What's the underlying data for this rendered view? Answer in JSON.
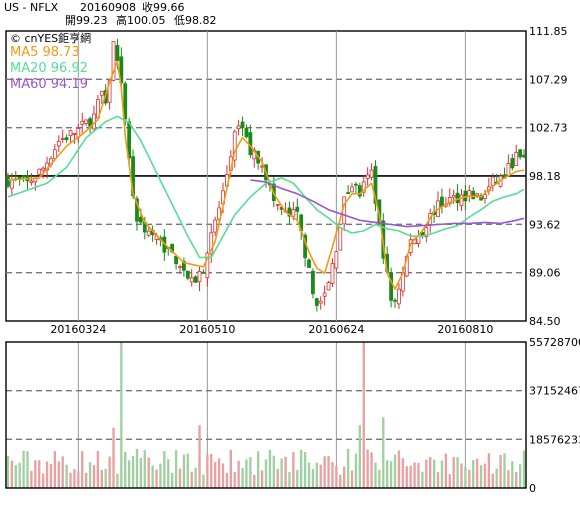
{
  "header": {
    "symbol": "US - NFLX",
    "date": "20160908",
    "close": "收99.66",
    "open": "開99.23",
    "high": "高100.05",
    "low": "低98.82"
  },
  "legend": {
    "source": "© cnYES鉅亨網",
    "ma5": "MA5 98.73",
    "ma20": "MA20 96.92",
    "ma60": "MA60 94.19"
  },
  "colors": {
    "up": "#d83030",
    "down": "#1a8a1a",
    "ma5": "#f29a16",
    "ma20": "#55dd99",
    "ma60": "#9955cc",
    "grid_dashed": "#777777",
    "reference_line": "#000000"
  },
  "chart_data": [
    {
      "type": "candlestick",
      "title": "US - NFLX",
      "price_axis": {
        "ticks": [
          "111.85",
          "107.29",
          "102.73",
          "98.18",
          "93.62",
          "89.06",
          "84.50"
        ],
        "ylim": [
          84.5,
          111.85
        ],
        "reference_line": 98.18,
        "position": "right"
      },
      "date_labels": [
        "20160324",
        "20160510",
        "20160624",
        "20160810"
      ],
      "date_label_index": [
        18,
        51,
        84,
        117
      ],
      "n_bars": 133,
      "ohlc_anchors": [
        [
          0,
          97.8
        ],
        [
          5,
          97.5
        ],
        [
          9,
          98.9
        ],
        [
          13,
          101.5
        ],
        [
          18,
          102.5
        ],
        [
          22,
          103.8
        ],
        [
          24,
          106.0
        ],
        [
          25,
          104.5
        ],
        [
          27,
          110.6
        ],
        [
          29,
          106.5
        ],
        [
          31,
          100.0
        ],
        [
          32,
          96.5
        ],
        [
          33,
          94.0
        ],
        [
          36,
          93.0
        ],
        [
          40,
          91.5
        ],
        [
          44,
          90.0
        ],
        [
          47,
          88.0
        ],
        [
          50,
          89.5
        ],
        [
          52,
          92.5
        ],
        [
          55,
          96.5
        ],
        [
          58,
          102.0
        ],
        [
          60,
          102.8
        ],
        [
          62,
          100.5
        ],
        [
          65,
          99.5
        ],
        [
          68,
          95.8
        ],
        [
          71,
          94.5
        ],
        [
          74,
          94.5
        ],
        [
          76,
          91.0
        ],
        [
          78,
          87.0
        ],
        [
          80,
          86.0
        ],
        [
          82,
          88.0
        ],
        [
          84,
          91.5
        ],
        [
          86,
          95.8
        ],
        [
          88,
          97.5
        ],
        [
          90,
          96.5
        ],
        [
          93,
          98.5
        ],
        [
          96,
          91.0
        ],
        [
          98,
          86.5
        ],
        [
          99,
          86.5
        ],
        [
          101,
          89.0
        ],
        [
          103,
          92.0
        ],
        [
          106,
          93.0
        ],
        [
          109,
          95.0
        ],
        [
          112,
          95.8
        ],
        [
          115,
          96.2
        ],
        [
          118,
          96.5
        ],
        [
          121,
          96.0
        ],
        [
          124,
          97.5
        ],
        [
          127,
          98.2
        ],
        [
          129,
          99.5
        ],
        [
          130,
          100.0
        ],
        [
          132,
          99.66
        ]
      ],
      "series": [
        {
          "name": "MA5 98.73",
          "points": [
            [
              0,
              97.8
            ],
            [
              8,
              98.0
            ],
            [
              15,
              101.0
            ],
            [
              20,
              102.4
            ],
            [
              23,
              103.5
            ],
            [
              26,
              107.0
            ],
            [
              28,
              109.0
            ],
            [
              29,
              106.5
            ],
            [
              30,
              102.0
            ],
            [
              32,
              96.5
            ],
            [
              35,
              93.8
            ],
            [
              40,
              91.8
            ],
            [
              45,
              90.0
            ],
            [
              50,
              89.6
            ],
            [
              53,
              92.0
            ],
            [
              56,
              97.0
            ],
            [
              58,
              100.5
            ],
            [
              60,
              101.8
            ],
            [
              62,
              101.0
            ],
            [
              65,
              99.5
            ],
            [
              68,
              96.5
            ],
            [
              71,
              94.8
            ],
            [
              74,
              94.0
            ],
            [
              77,
              91.0
            ],
            [
              79,
              89.5
            ],
            [
              81,
              89.0
            ],
            [
              83,
              91.5
            ],
            [
              86,
              95.5
            ],
            [
              88,
              96.5
            ],
            [
              90,
              96.5
            ],
            [
              93,
              97.5
            ],
            [
              95,
              94.5
            ],
            [
              97,
              89.0
            ],
            [
              99,
              87.5
            ],
            [
              101,
              89.0
            ],
            [
              103,
              91.8
            ],
            [
              106,
              93.0
            ],
            [
              109,
              94.8
            ],
            [
              112,
              95.5
            ],
            [
              115,
              96.0
            ],
            [
              118,
              96.3
            ],
            [
              121,
              96.2
            ],
            [
              124,
              97.2
            ],
            [
              127,
              98.0
            ],
            [
              130,
              98.6
            ],
            [
              132,
              98.73
            ]
          ]
        },
        {
          "name": "MA20 96.92",
          "points": [
            [
              0,
              96.2
            ],
            [
              10,
              97.5
            ],
            [
              15,
              99.0
            ],
            [
              20,
              101.8
            ],
            [
              25,
              103.3
            ],
            [
              28,
              103.8
            ],
            [
              31,
              103.2
            ],
            [
              34,
              101.5
            ],
            [
              38,
              98.5
            ],
            [
              42,
              95.5
            ],
            [
              46,
              92.5
            ],
            [
              49,
              90.5
            ],
            [
              52,
              90.5
            ],
            [
              55,
              92.5
            ],
            [
              58,
              94.5
            ],
            [
              62,
              96.2
            ],
            [
              66,
              97.5
            ],
            [
              70,
              98.0
            ],
            [
              73,
              97.5
            ],
            [
              76,
              96.2
            ],
            [
              79,
              95.0
            ],
            [
              82,
              94.2
            ],
            [
              85,
              93.3
            ],
            [
              88,
              92.8
            ],
            [
              91,
              93.0
            ],
            [
              94,
              93.6
            ],
            [
              97,
              93.2
            ],
            [
              100,
              93.0
            ],
            [
              103,
              92.5
            ],
            [
              106,
              92.5
            ],
            [
              109,
              92.8
            ],
            [
              112,
              93.2
            ],
            [
              115,
              93.5
            ],
            [
              118,
              94.3
            ],
            [
              121,
              95.0
            ],
            [
              124,
              95.8
            ],
            [
              127,
              96.2
            ],
            [
              130,
              96.5
            ],
            [
              132,
              96.92
            ]
          ]
        },
        {
          "name": "MA60 94.19",
          "points": [
            [
              62,
              97.8
            ],
            [
              66,
              97.6
            ],
            [
              70,
              97.0
            ],
            [
              74,
              96.5
            ],
            [
              78,
              95.8
            ],
            [
              82,
              95.0
            ],
            [
              86,
              94.5
            ],
            [
              90,
              94.0
            ],
            [
              94,
              93.8
            ],
            [
              98,
              93.6
            ],
            [
              102,
              93.4
            ],
            [
              106,
              93.5
            ],
            [
              110,
              93.6
            ],
            [
              114,
              93.7
            ],
            [
              118,
              93.7
            ],
            [
              122,
              93.8
            ],
            [
              126,
              93.7
            ],
            [
              130,
              94.0
            ],
            [
              132,
              94.19
            ]
          ]
        }
      ]
    },
    {
      "type": "bar",
      "title": "",
      "ylabel": "",
      "volume_axis": {
        "ticks": [
          "55728700",
          "37152467",
          "18576233",
          "0"
        ],
        "ylim": [
          0,
          55728700
        ],
        "position": "right"
      },
      "spikes": [
        {
          "index": 29,
          "value": 55728700
        },
        {
          "index": 91,
          "value": 55728700
        },
        {
          "index": 96,
          "value": 27000000
        },
        {
          "index": 49,
          "value": 24000000
        },
        {
          "index": 27,
          "value": 23000000
        },
        {
          "index": 90,
          "value": 24000000
        }
      ],
      "typical_range": [
        5000000,
        15000000
      ]
    }
  ]
}
